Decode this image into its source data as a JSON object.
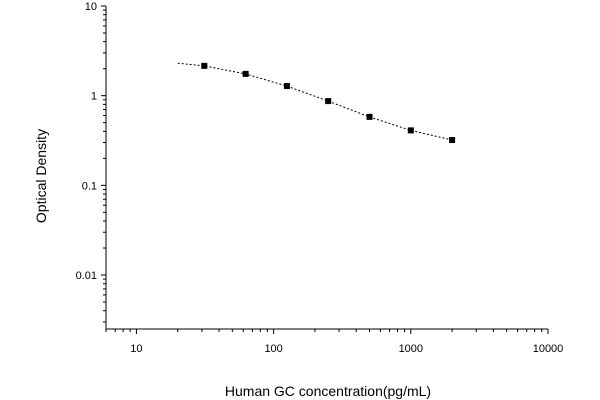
{
  "chart_data": {
    "type": "scatter",
    "title": "",
    "xlabel": "Human GC concentration(pg/mL)",
    "ylabel": "Optical Density",
    "x_scale": "log",
    "y_scale": "log",
    "xlim": [
      6,
      10000
    ],
    "ylim": [
      0.0025,
      10
    ],
    "x_ticks": [
      10,
      100,
      1000,
      10000
    ],
    "x_tick_labels": [
      "10",
      "100",
      "1000",
      "10000"
    ],
    "y_ticks": [
      0.01,
      0.1,
      1,
      10
    ],
    "y_tick_labels": [
      "0.01",
      "0.1",
      "1",
      "10"
    ],
    "grid": false,
    "legend": "none",
    "series": [
      {
        "x": [
          31.25,
          62.5,
          125,
          250,
          500,
          1000,
          2000
        ],
        "y": [
          2.15,
          1.75,
          1.28,
          0.87,
          0.58,
          0.41,
          0.32
        ],
        "marker": "square",
        "color": "#000000"
      }
    ],
    "fit_curve": {
      "style": "dashed",
      "color": "#000000",
      "x": [
        20,
        31.25,
        62.5,
        125,
        250,
        500,
        1000,
        2000
      ],
      "y": [
        2.3,
        2.15,
        1.75,
        1.28,
        0.87,
        0.58,
        0.41,
        0.32
      ]
    }
  }
}
